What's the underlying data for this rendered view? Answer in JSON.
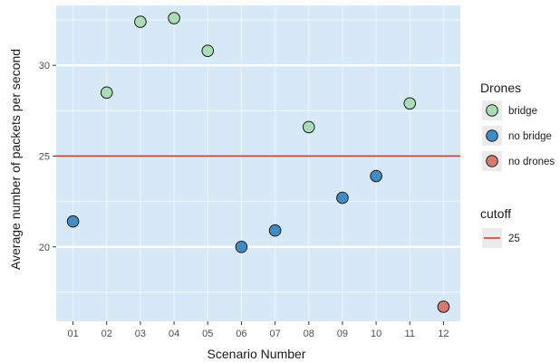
{
  "chart_data": {
    "type": "scatter",
    "title": "",
    "xlabel": "Scenario Number",
    "ylabel": "Average number of packets per second",
    "categories": [
      "01",
      "02",
      "03",
      "04",
      "05",
      "06",
      "07",
      "08",
      "09",
      "10",
      "11",
      "12"
    ],
    "ylim": [
      15.9,
      33.3
    ],
    "yticks": [
      20,
      25,
      30
    ],
    "grid": true,
    "panel_background": "#d7e9f7",
    "grid_color": "#ffffff",
    "series": [
      {
        "name": "bridge",
        "color": "#a8ddb5",
        "points": [
          {
            "x": "02",
            "y": 28.5
          },
          {
            "x": "03",
            "y": 32.4
          },
          {
            "x": "04",
            "y": 32.6
          },
          {
            "x": "05",
            "y": 30.8
          },
          {
            "x": "08",
            "y": 26.6
          },
          {
            "x": "11",
            "y": 27.9
          }
        ]
      },
      {
        "name": "no bridge",
        "color": "#3f8dc4",
        "points": [
          {
            "x": "01",
            "y": 21.4
          },
          {
            "x": "06",
            "y": 20.0
          },
          {
            "x": "07",
            "y": 20.9
          },
          {
            "x": "09",
            "y": 22.7
          },
          {
            "x": "10",
            "y": 23.9
          }
        ]
      },
      {
        "name": "no drones",
        "color": "#d87a70",
        "points": [
          {
            "x": "12",
            "y": 16.7
          }
        ]
      }
    ],
    "cutoff": {
      "value": 25,
      "label": "25",
      "color": "#c0392b"
    },
    "legend": {
      "position": "right",
      "drones_title": "Drones",
      "cutoff_title": "cutoff"
    }
  }
}
